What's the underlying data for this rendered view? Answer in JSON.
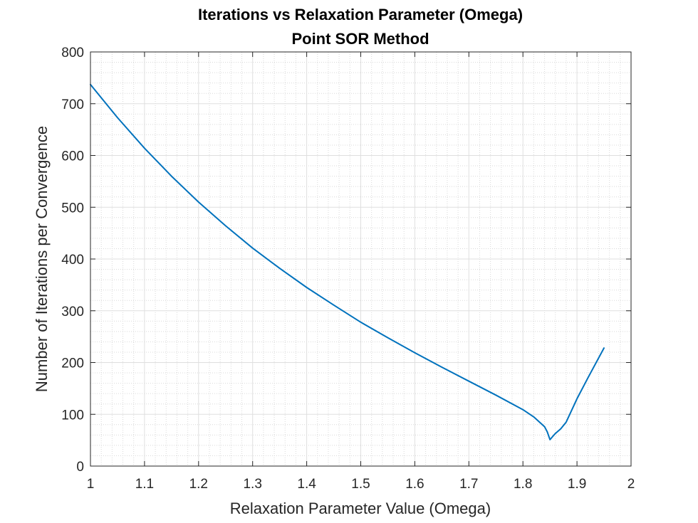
{
  "chart_data": {
    "type": "line",
    "title": "Iterations vs Relaxation Parameter (Omega)",
    "subtitle": "Point SOR Method",
    "xlabel": "Relaxation Parameter Value (Omega)",
    "ylabel": "Number of Iterations per Convergence",
    "xlim": [
      1,
      2
    ],
    "ylim": [
      0,
      800
    ],
    "x_ticks": [
      1,
      1.1,
      1.2,
      1.3,
      1.4,
      1.5,
      1.6,
      1.7,
      1.8,
      1.9,
      2
    ],
    "x_tick_labels": [
      "1",
      "1.1",
      "1.2",
      "1.3",
      "1.4",
      "1.5",
      "1.6",
      "1.7",
      "1.8",
      "1.9",
      "2"
    ],
    "y_ticks": [
      0,
      100,
      200,
      300,
      400,
      500,
      600,
      700,
      800
    ],
    "y_tick_labels": [
      "0",
      "100",
      "200",
      "300",
      "400",
      "500",
      "600",
      "700",
      "800"
    ],
    "grid": true,
    "minor_grid": true,
    "line_color": "#0072BD",
    "series": [
      {
        "x": [
          1.0,
          1.05,
          1.1,
          1.15,
          1.2,
          1.25,
          1.3,
          1.35,
          1.4,
          1.45,
          1.5,
          1.55,
          1.6,
          1.65,
          1.7,
          1.75,
          1.8,
          1.82,
          1.84,
          1.845,
          1.85,
          1.855,
          1.86,
          1.87,
          1.88,
          1.9,
          1.92,
          1.95
        ],
        "y": [
          737,
          673,
          614,
          560,
          510,
          464,
          421,
          382,
          345,
          311,
          278,
          248,
          219,
          191,
          164,
          137,
          109,
          95,
          76,
          66,
          51,
          57,
          63,
          72,
          85,
          130,
          170,
          228
        ]
      }
    ]
  }
}
